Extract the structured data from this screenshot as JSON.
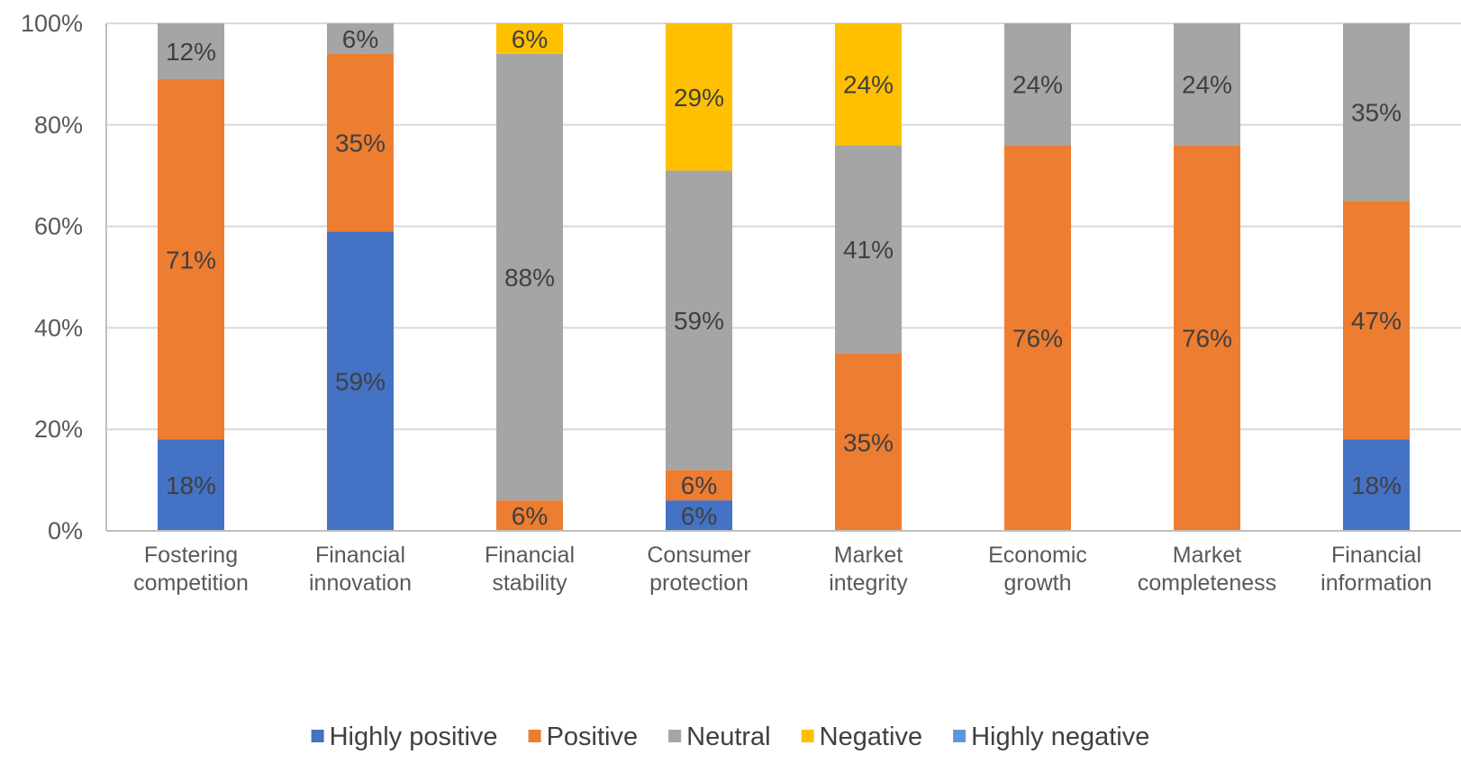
{
  "chart_data": {
    "type": "bar",
    "stacked": true,
    "percent_stacked": true,
    "title": "",
    "xlabel": "",
    "ylabel": "",
    "ylim": [
      0,
      100
    ],
    "y_ticks": [
      "0%",
      "20%",
      "40%",
      "60%",
      "80%",
      "100%"
    ],
    "grid": true,
    "legend_position": "bottom",
    "categories": [
      [
        "Fostering",
        "competition"
      ],
      [
        "Financial",
        "innovation"
      ],
      [
        "Financial",
        "stability"
      ],
      [
        "Consumer",
        "protection"
      ],
      [
        "Market",
        "integrity"
      ],
      [
        "Economic",
        "growth"
      ],
      [
        "Market",
        "completeness"
      ],
      [
        "Financial",
        "information"
      ]
    ],
    "series": [
      {
        "name": "Highly positive",
        "color": "#4472C4",
        "values": [
          18,
          59,
          0,
          6,
          0,
          0,
          0,
          18
        ]
      },
      {
        "name": "Positive",
        "color": "#ED7D31",
        "values": [
          71,
          35,
          6,
          6,
          35,
          76,
          76,
          47
        ]
      },
      {
        "name": "Neutral",
        "color": "#A5A5A5",
        "values": [
          12,
          6,
          88,
          59,
          41,
          24,
          24,
          35
        ]
      },
      {
        "name": "Negative",
        "color": "#FFC000",
        "values": [
          0,
          0,
          6,
          29,
          24,
          0,
          0,
          0
        ]
      },
      {
        "name": "Highly negative",
        "color": "#5B9BD5",
        "values": [
          0,
          0,
          0,
          0,
          0,
          0,
          0,
          0
        ]
      }
    ],
    "data_label_suffix": "%"
  }
}
